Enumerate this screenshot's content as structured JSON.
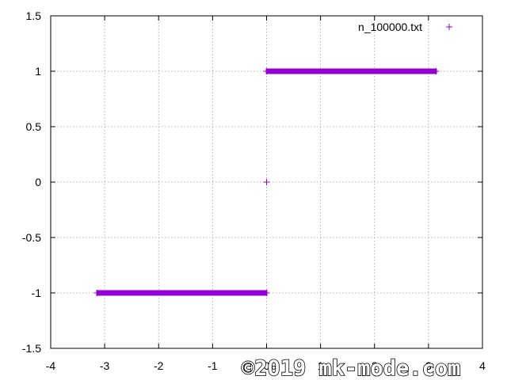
{
  "chart_data": {
    "type": "scatter",
    "xlim": [
      -4,
      4
    ],
    "ylim": [
      -1.5,
      1.5
    ],
    "x_ticks": [
      "-4",
      "-3",
      "-2",
      "-1",
      "0",
      "1",
      "2",
      "3",
      "4"
    ],
    "y_ticks": [
      "1.5",
      "1",
      "0.5",
      "0",
      "-0.5",
      "-1",
      "-1.5"
    ],
    "grid": true,
    "legend_position": "top-right",
    "series": [
      {
        "name": "n_100000.txt",
        "marker": "+",
        "color": "#9400d3",
        "segments": [
          {
            "x_start": -3.14159,
            "x_end": -3e-05,
            "y": -1
          },
          {
            "x_start": 0,
            "x_end": 0,
            "y": 0
          },
          {
            "x_start": 3e-05,
            "x_end": 3.14159,
            "y": 1
          }
        ]
      }
    ]
  },
  "watermark": "©2019 mk-mode.com"
}
